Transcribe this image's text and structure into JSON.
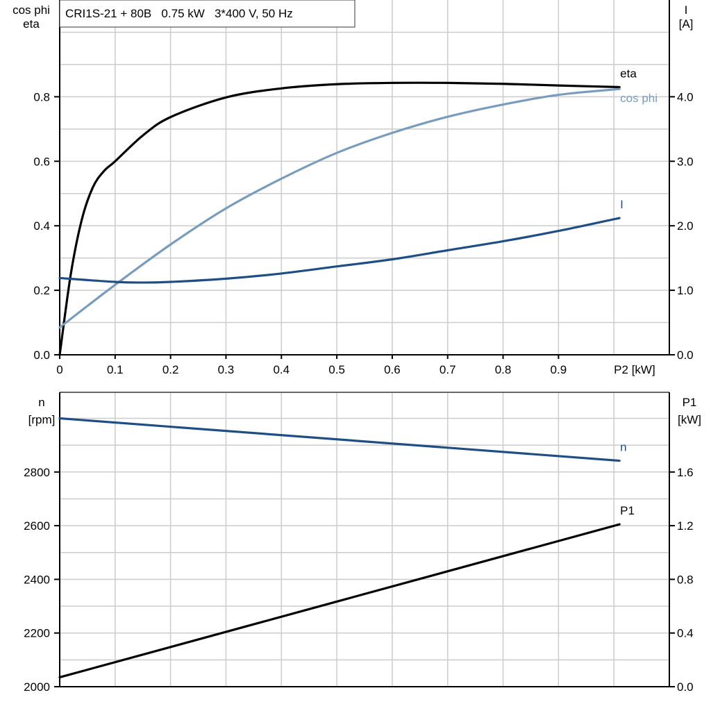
{
  "title": "CRI1S-21 + 80B   0.75 kW   3*400 V, 50 Hz",
  "chart_data": [
    {
      "type": "line",
      "xlabel": "P2 [kW]",
      "ylabel_left": [
        "cos phi",
        "eta"
      ],
      "ylabel_right": [
        "I",
        "[A]"
      ],
      "xlim": [
        0,
        1.1
      ],
      "ylim_left": [
        0,
        1.1
      ],
      "ylim_right": [
        0,
        5.5
      ],
      "grid": true,
      "x_ticks": [
        "0",
        "0.1",
        "0.2",
        "0.3",
        "0.4",
        "0.5",
        "0.6",
        "0.7",
        "0.8",
        "0.9"
      ],
      "y_ticks_left": [
        "0.0",
        "0.2",
        "0.4",
        "0.6",
        "0.8"
      ],
      "y_ticks_right": [
        "0.0",
        "1.0",
        "2.0",
        "3.0",
        "4.0"
      ],
      "series": [
        {
          "name": "eta",
          "axis": "left",
          "color": "#000000",
          "x": [
            0,
            0.02,
            0.04,
            0.06,
            0.08,
            0.1,
            0.15,
            0.2,
            0.3,
            0.4,
            0.5,
            0.6,
            0.7,
            0.8,
            0.9,
            1.01
          ],
          "y": [
            0,
            0.25,
            0.42,
            0.52,
            0.57,
            0.6,
            0.68,
            0.737,
            0.798,
            0.826,
            0.839,
            0.843,
            0.843,
            0.84,
            0.835,
            0.83
          ]
        },
        {
          "name": "cos phi",
          "axis": "left",
          "color": "#7a9cbc",
          "x": [
            0,
            0.1,
            0.2,
            0.3,
            0.4,
            0.5,
            0.6,
            0.7,
            0.8,
            0.9,
            1.01
          ],
          "y": [
            0.085,
            0.217,
            0.342,
            0.454,
            0.546,
            0.626,
            0.688,
            0.738,
            0.776,
            0.806,
            0.824
          ]
        },
        {
          "name": "I",
          "axis": "right",
          "color": "#1f4e85",
          "x": [
            0,
            0.1,
            0.15,
            0.2,
            0.3,
            0.4,
            0.5,
            0.6,
            0.7,
            0.8,
            0.9,
            1.01
          ],
          "y": [
            1.19,
            1.13,
            1.12,
            1.13,
            1.18,
            1.26,
            1.37,
            1.48,
            1.62,
            1.76,
            1.92,
            2.12
          ]
        }
      ]
    },
    {
      "type": "line",
      "xlim": [
        0,
        1.1
      ],
      "ylabel_left": [
        "n",
        "[rpm]"
      ],
      "ylabel_right": [
        "P1",
        "[kW]"
      ],
      "ylim_left": [
        2000,
        3097
      ],
      "ylim_right": [
        0,
        2.194
      ],
      "grid": true,
      "y_ticks_left": [
        "2000",
        "2200",
        "2400",
        "2600",
        "2800"
      ],
      "y_ticks_right": [
        "0.0",
        "0.4",
        "0.8",
        "1.2",
        "1.6"
      ],
      "series": [
        {
          "name": "n",
          "axis": "left",
          "color": "#1f4e85",
          "x": [
            0,
            1.01
          ],
          "y": [
            3000,
            2842
          ]
        },
        {
          "name": "P1",
          "axis": "right",
          "color": "#000000",
          "x": [
            0,
            1.01
          ],
          "y": [
            0.07,
            1.21
          ]
        }
      ]
    }
  ]
}
